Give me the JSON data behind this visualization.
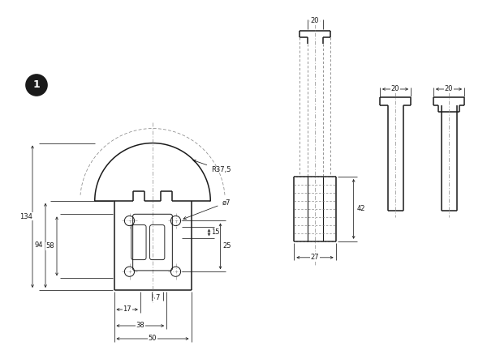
{
  "bg_color": "#ffffff",
  "line_color": "#1a1a1a",
  "dim_color": "#1a1a1a",
  "thin_lw": 0.8,
  "thick_lw": 1.1,
  "dim_lw": 0.55,
  "font_size": 6.0
}
